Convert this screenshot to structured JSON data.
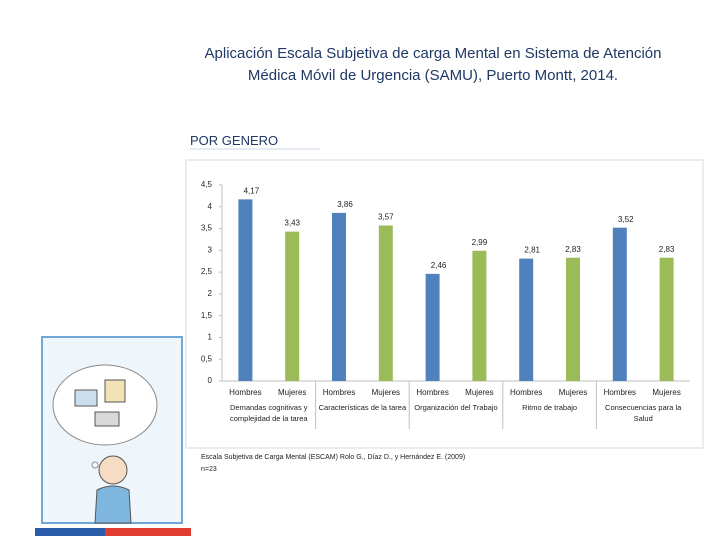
{
  "header": {
    "title_line1": "Aplicación Escala Subjetiva de carga Mental en Sistema de Atención",
    "title_line2": "Médica Móvil de Urgencia (SAMU), Puerto Montt, 2014.",
    "section": "POR GENERO"
  },
  "chart_data": {
    "type": "bar",
    "categories": [
      "Demandas cognitivas y complejidad de la tarea",
      "Características de la tarea",
      "Organización del Trabajo",
      "Ritmo de trabajo",
      "Consecuencias para la Salud"
    ],
    "series": [
      {
        "name": "Hombres",
        "color": "#4f81bd",
        "values": [
          4.17,
          3.86,
          2.46,
          2.81,
          3.52
        ],
        "value_labels": [
          "4,17",
          "3,86",
          "2,46",
          "2,81",
          "3,52"
        ]
      },
      {
        "name": "Mujeres",
        "color": "#9bbb59",
        "values": [
          3.43,
          3.57,
          2.99,
          2.83,
          2.83
        ],
        "value_labels": [
          "3,43",
          "3,57",
          "2,99",
          "2,83",
          "2,83"
        ]
      }
    ],
    "ylim": [
      0,
      4.5
    ],
    "yticks": [
      0,
      {
        "value": 0.5,
        "label": "0,5"
      },
      1,
      {
        "value": 1.5,
        "label": "1,5"
      },
      2,
      {
        "value": 2.5,
        "label": "2,5"
      },
      3,
      {
        "value": 3.5,
        "label": "3,5"
      },
      4,
      {
        "value": 4.5,
        "label": "4,5"
      }
    ],
    "grid": false
  },
  "footnote": {
    "source": "Escala Subjetiva de Carga Mental (ESCAM) Rolo G., Díaz D., y Hernández E. (2009)",
    "n": "n=23"
  }
}
